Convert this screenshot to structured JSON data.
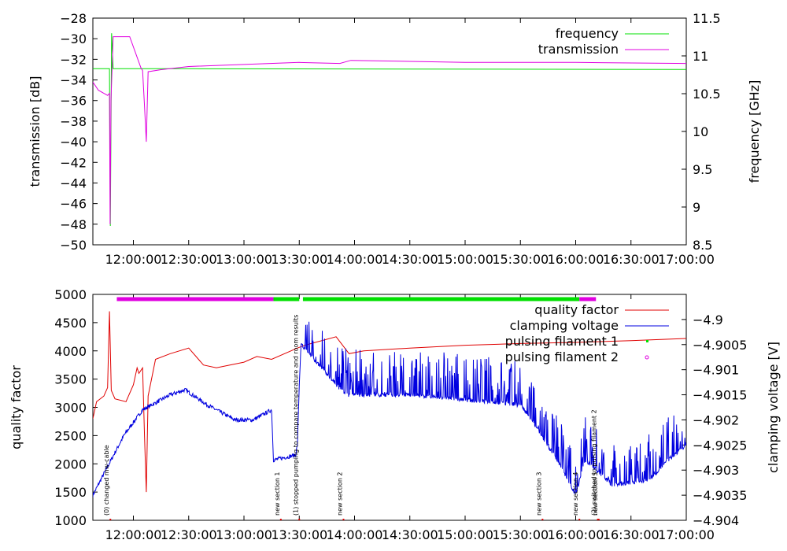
{
  "chart_data": [
    {
      "type": "line",
      "xlabel": "",
      "ylabel": "transmission [dB]",
      "y2label": "frequency [GHz]",
      "xlim": [
        "11:38:00",
        "17:00:00"
      ],
      "ylim": [
        -50,
        -28
      ],
      "y2lim": [
        8.5,
        11.5
      ],
      "x_ticks": [
        "12:00:00",
        "12:30:00",
        "13:00:00",
        "13:30:00",
        "14:00:00",
        "14:30:00",
        "15:00:00",
        "15:30:00",
        "16:00:00",
        "16:30:00",
        "17:00:00"
      ],
      "y_ticks": [
        "-50",
        "-48",
        "-46",
        "-44",
        "-42",
        "-40",
        "-38",
        "-36",
        "-34",
        "-32",
        "-30",
        "-28"
      ],
      "y2_ticks": [
        "8.5",
        "9",
        "9.5",
        "10",
        "10.5",
        "11",
        "11.5"
      ],
      "legend": {
        "position": "top-right"
      },
      "series": [
        {
          "name": "frequency",
          "axis": "right",
          "color": "#00e000",
          "points": [
            [
              "11:38:00",
              10.83
            ],
            [
              "11:47:00",
              10.83
            ],
            [
              "11:47:30",
              8.75
            ],
            [
              "11:48:10",
              11.3
            ],
            [
              "11:49:00",
              10.83
            ],
            [
              "12:30:00",
              10.83
            ],
            [
              "17:00:00",
              10.82
            ]
          ]
        },
        {
          "name": "transmission",
          "axis": "left",
          "color": "#e000e0",
          "points": [
            [
              "11:38:00",
              -34.2
            ],
            [
              "11:41:00",
              -35.0
            ],
            [
              "11:44:00",
              -35.3
            ],
            [
              "11:46:00",
              -35.5
            ],
            [
              "11:47:00",
              -35.3
            ],
            [
              "11:47:20",
              -48.0
            ],
            [
              "11:47:50",
              -36.0
            ],
            [
              "11:49:00",
              -29.8
            ],
            [
              "11:58:00",
              -29.8
            ],
            [
              "12:02:00",
              -31.8
            ],
            [
              "12:04:00",
              -32.8
            ],
            [
              "12:05:00",
              -33.1
            ],
            [
              "12:06:00",
              -36.5
            ],
            [
              "12:07:00",
              -40.0
            ],
            [
              "12:08:00",
              -33.2
            ],
            [
              "12:15:00",
              -33.0
            ],
            [
              "12:30:00",
              -32.7
            ],
            [
              "13:00:00",
              -32.5
            ],
            [
              "13:30:00",
              -32.3
            ],
            [
              "13:52:00",
              -32.4
            ],
            [
              "13:58:00",
              -32.1
            ],
            [
              "14:30:00",
              -32.2
            ],
            [
              "15:00:00",
              -32.3
            ],
            [
              "16:00:00",
              -32.3
            ],
            [
              "17:00:00",
              -32.4
            ]
          ]
        }
      ]
    },
    {
      "type": "line",
      "xlabel": "",
      "ylabel": "quality factor",
      "y2label": "clamping voltage [V]",
      "xlim": [
        "11:38:00",
        "17:00:00"
      ],
      "ylim": [
        1000,
        5000
      ],
      "y2lim": [
        -4.904,
        -4.8995
      ],
      "x_ticks": [
        "12:00:00",
        "12:30:00",
        "13:00:00",
        "13:30:00",
        "14:00:00",
        "14:30:00",
        "15:00:00",
        "15:30:00",
        "16:00:00",
        "16:30:00",
        "17:00:00"
      ],
      "y_ticks": [
        "1000",
        "1500",
        "2000",
        "2500",
        "3000",
        "3500",
        "4000",
        "4500",
        "5000"
      ],
      "y2_ticks": [
        "-4.904",
        "-4.9035",
        "-4.903",
        "-4.9025",
        "-4.902",
        "-4.9015",
        "-4.901",
        "-4.9005",
        "-4.9"
      ],
      "legend": {
        "position": "top-right"
      },
      "series": [
        {
          "name": "quality factor",
          "axis": "left",
          "color": "#e00000",
          "points": [
            [
              "11:38:00",
              2800
            ],
            [
              "11:40:00",
              3100
            ],
            [
              "11:44:00",
              3200
            ],
            [
              "11:46:00",
              3350
            ],
            [
              "11:47:00",
              4700
            ],
            [
              "11:48:00",
              3300
            ],
            [
              "11:50:00",
              3150
            ],
            [
              "11:56:00",
              3100
            ],
            [
              "12:00:00",
              3400
            ],
            [
              "12:02:00",
              3700
            ],
            [
              "12:03:00",
              3600
            ],
            [
              "12:05:00",
              3700
            ],
            [
              "12:06:00",
              2500
            ],
            [
              "12:07:00",
              1500
            ],
            [
              "12:08:00",
              3200
            ],
            [
              "12:12:00",
              3850
            ],
            [
              "12:20:00",
              3950
            ],
            [
              "12:30:00",
              4050
            ],
            [
              "12:38:00",
              3750
            ],
            [
              "12:45:00",
              3700
            ],
            [
              "13:00:00",
              3800
            ],
            [
              "13:07:00",
              3900
            ],
            [
              "13:15:00",
              3850
            ],
            [
              "13:29:00",
              4050
            ],
            [
              "13:33:00",
              4100
            ],
            [
              "13:50:00",
              4250
            ],
            [
              "13:57:00",
              3950
            ],
            [
              "14:05:00",
              4000
            ],
            [
              "14:30:00",
              4050
            ],
            [
              "15:00:00",
              4100
            ],
            [
              "15:30:00",
              4130
            ],
            [
              "16:00:00",
              4150
            ],
            [
              "16:30:00",
              4180
            ],
            [
              "17:00:00",
              4220
            ]
          ]
        },
        {
          "name": "clamping voltage",
          "axis": "right",
          "color": "#0000e0",
          "points": [
            [
              "11:38:00",
              -4.9035
            ],
            [
              "11:45:00",
              -4.903
            ],
            [
              "11:55:00",
              -4.9023
            ],
            [
              "12:05:00",
              -4.9018
            ],
            [
              "12:20:00",
              -4.9015
            ],
            [
              "12:28:00",
              -4.9014
            ],
            [
              "12:40:00",
              -4.9017
            ],
            [
              "12:55:00",
              -4.902
            ],
            [
              "13:05:00",
              -4.902
            ],
            [
              "13:15:00",
              -4.9018
            ],
            [
              "13:16:00",
              -4.9028
            ],
            [
              "13:28:00",
              -4.9027
            ],
            [
              "13:29:00",
              -4.9025
            ],
            [
              "13:30:00",
              -4.9013
            ],
            [
              "13:31:00",
              -4.9005
            ],
            [
              "13:55:00",
              -4.9015
            ],
            [
              "14:30:00",
              -4.9015
            ],
            [
              "15:00:00",
              -4.9016
            ],
            [
              "15:30:00",
              -4.9017
            ],
            [
              "15:36:00",
              -4.902
            ],
            [
              "15:50:00",
              -4.9028
            ],
            [
              "16:00:00",
              -4.9035
            ],
            [
              "16:05:00",
              -4.9028
            ],
            [
              "16:08:00",
              -4.9029
            ],
            [
              "16:20:00",
              -4.9033
            ],
            [
              "16:40:00",
              -4.9032
            ],
            [
              "16:50:00",
              -4.9028
            ],
            [
              "17:00:00",
              -4.9025
            ]
          ]
        },
        {
          "name": "pulsing filament 1",
          "axis": "top-band",
          "color": "#00e000",
          "points": [
            [
              "13:16:00",
              1
            ],
            [
              "13:30:00",
              1
            ],
            [
              "13:32:00",
              1
            ],
            [
              "16:02:00",
              1
            ]
          ]
        },
        {
          "name": "pulsing filament 2",
          "axis": "top-band",
          "color": "#e000e0",
          "points": [
            [
              "11:51:00",
              1
            ],
            [
              "13:16:00",
              1
            ],
            [
              "16:02:00",
              1
            ],
            [
              "16:11:00",
              1
            ]
          ]
        }
      ],
      "annotations": [
        {
          "time": "11:47:30",
          "text": "(0) changed mw-cable"
        },
        {
          "time": "13:20:00",
          "text": "new section 1"
        },
        {
          "time": "13:30:00",
          "text": "(1) stopped pumping to compare temperature and room results"
        },
        {
          "time": "13:54:00",
          "text": "new section 2"
        },
        {
          "time": "15:42:00",
          "text": "new section 3"
        },
        {
          "time": "16:02:00",
          "text": "new section 4"
        },
        {
          "time": "16:12:00",
          "text": "(2) switched to pulsing filament 2"
        },
        {
          "time": "16:12:30",
          "text": "new section 5"
        }
      ]
    }
  ]
}
